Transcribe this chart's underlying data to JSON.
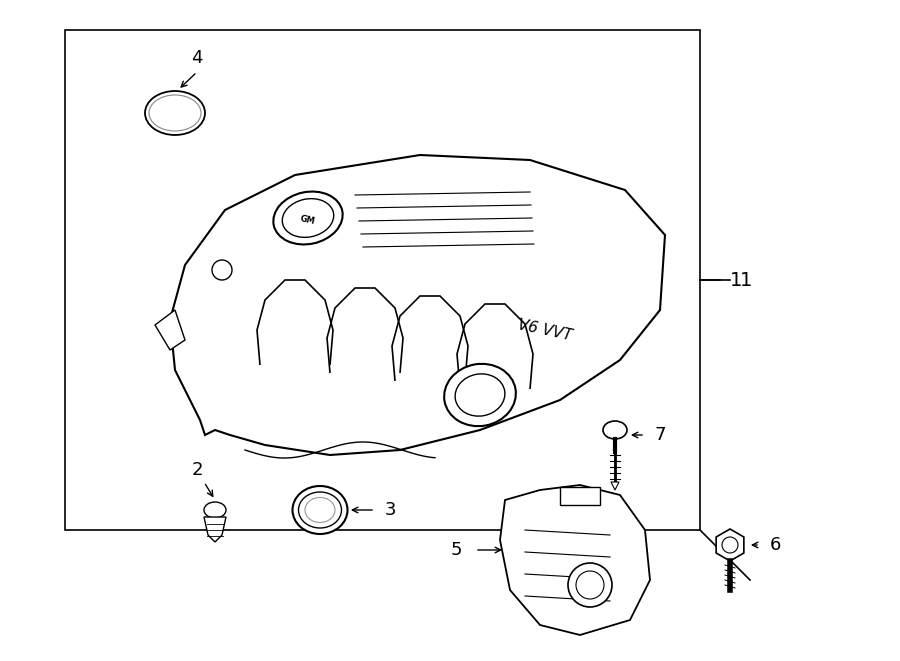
{
  "background_color": "#ffffff",
  "line_color": "#000000",
  "figure_size": [
    9.0,
    6.61
  ],
  "dpi": 100
}
